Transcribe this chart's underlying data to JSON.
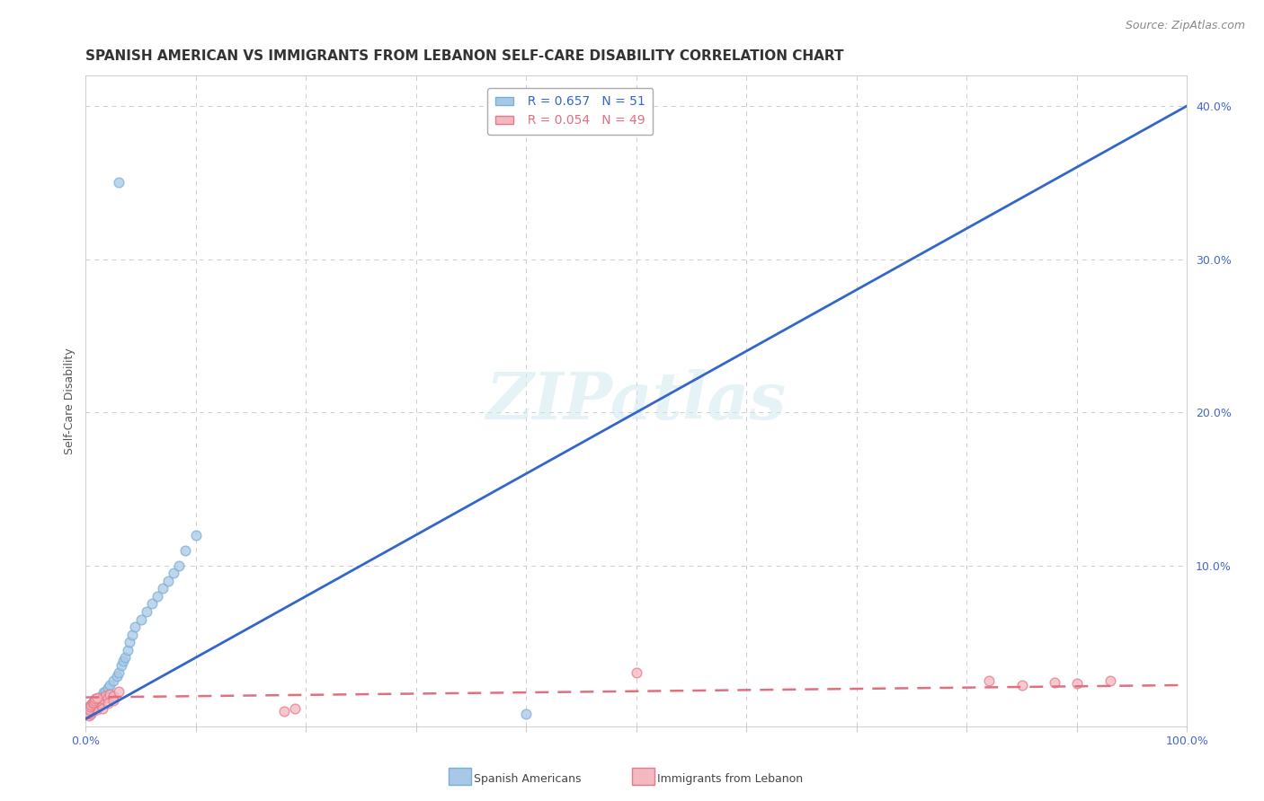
{
  "title": "SPANISH AMERICAN VS IMMIGRANTS FROM LEBANON SELF-CARE DISABILITY CORRELATION CHART",
  "source": "Source: ZipAtlas.com",
  "ylabel": "Self-Care Disability",
  "xlim": [
    0,
    1.0
  ],
  "ylim": [
    -0.005,
    0.42
  ],
  "grid_color": "#cccccc",
  "background_color": "#ffffff",
  "watermark_text": "ZIPatlas",
  "legend_R1": "R = 0.657",
  "legend_N1": "N = 51",
  "legend_R2": "R = 0.054",
  "legend_N2": "N = 49",
  "blue_color": "#a8c8e8",
  "blue_edge_color": "#7aafd4",
  "blue_line_color": "#3366cc",
  "pink_color": "#f4b8c0",
  "pink_edge_color": "#e87888",
  "pink_line_color": "#e07080",
  "tick_color": "#4466cc",
  "blue_x": [
    0.001,
    0.002,
    0.002,
    0.003,
    0.003,
    0.003,
    0.004,
    0.004,
    0.004,
    0.005,
    0.005,
    0.005,
    0.006,
    0.006,
    0.007,
    0.007,
    0.008,
    0.008,
    0.009,
    0.01,
    0.01,
    0.011,
    0.012,
    0.013,
    0.015,
    0.016,
    0.018,
    0.02,
    0.022,
    0.025,
    0.028,
    0.03,
    0.032,
    0.034,
    0.036,
    0.038,
    0.04,
    0.042,
    0.045,
    0.05,
    0.055,
    0.06,
    0.065,
    0.07,
    0.075,
    0.08,
    0.085,
    0.09,
    0.1,
    0.03,
    0.4
  ],
  "blue_y": [
    0.003,
    0.004,
    0.005,
    0.003,
    0.006,
    0.008,
    0.004,
    0.007,
    0.005,
    0.006,
    0.009,
    0.004,
    0.007,
    0.01,
    0.008,
    0.011,
    0.009,
    0.012,
    0.011,
    0.01,
    0.013,
    0.012,
    0.014,
    0.013,
    0.015,
    0.017,
    0.018,
    0.02,
    0.022,
    0.025,
    0.028,
    0.03,
    0.035,
    0.038,
    0.04,
    0.045,
    0.05,
    0.055,
    0.06,
    0.065,
    0.07,
    0.075,
    0.08,
    0.085,
    0.09,
    0.095,
    0.1,
    0.11,
    0.12,
    0.35,
    0.003
  ],
  "pink_x": [
    0.001,
    0.001,
    0.002,
    0.002,
    0.003,
    0.003,
    0.003,
    0.004,
    0.004,
    0.005,
    0.005,
    0.006,
    0.006,
    0.007,
    0.007,
    0.008,
    0.008,
    0.009,
    0.01,
    0.01,
    0.011,
    0.012,
    0.013,
    0.015,
    0.018,
    0.02,
    0.022,
    0.025,
    0.03,
    0.002,
    0.003,
    0.004,
    0.005,
    0.006,
    0.007,
    0.008,
    0.009,
    0.01,
    0.015,
    0.02,
    0.025,
    0.18,
    0.19,
    0.5,
    0.82,
    0.85,
    0.88,
    0.9,
    0.93
  ],
  "pink_y": [
    0.003,
    0.006,
    0.004,
    0.007,
    0.002,
    0.005,
    0.008,
    0.004,
    0.007,
    0.003,
    0.009,
    0.005,
    0.01,
    0.006,
    0.011,
    0.007,
    0.012,
    0.009,
    0.006,
    0.013,
    0.01,
    0.012,
    0.011,
    0.013,
    0.015,
    0.014,
    0.016,
    0.015,
    0.018,
    0.004,
    0.006,
    0.008,
    0.009,
    0.01,
    0.011,
    0.012,
    0.013,
    0.014,
    0.007,
    0.01,
    0.012,
    0.005,
    0.007,
    0.03,
    0.025,
    0.022,
    0.024,
    0.023,
    0.025
  ],
  "blue_line_x": [
    0.0,
    1.0
  ],
  "blue_line_y": [
    0.0,
    0.4
  ],
  "pink_line_x": [
    0.0,
    1.0
  ],
  "pink_line_y": [
    0.014,
    0.022
  ],
  "title_fontsize": 11,
  "source_fontsize": 9,
  "axis_label_fontsize": 9,
  "tick_fontsize": 9,
  "legend_fontsize": 10,
  "marker_size": 60,
  "marker_linewidth": 1.0
}
